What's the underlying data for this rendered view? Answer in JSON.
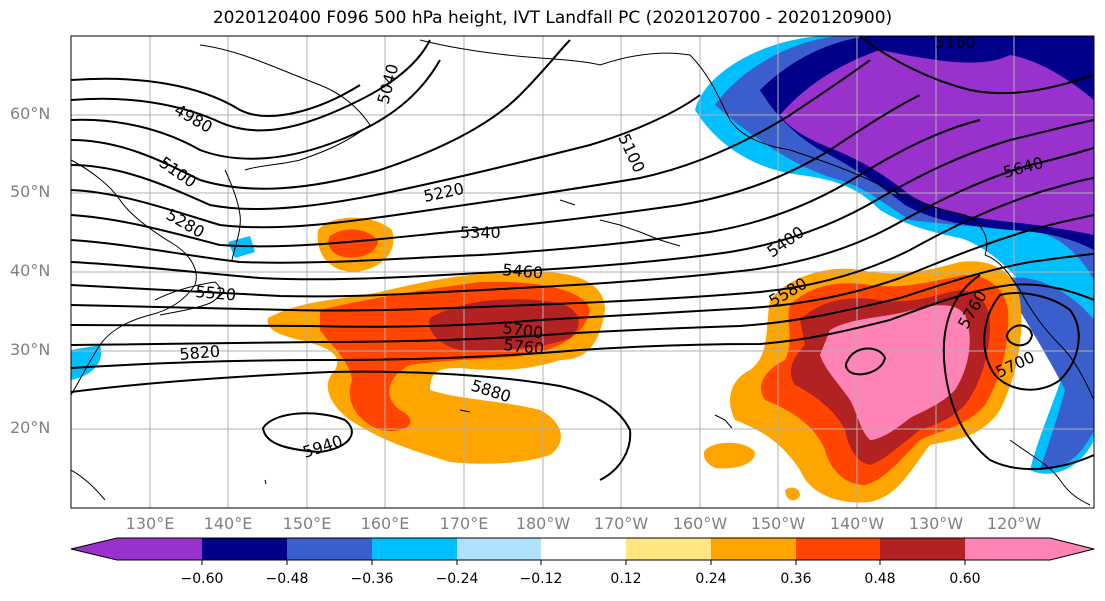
{
  "title": "2020120400 F096 500 hPa height, IVT Landfall PC (2020120700 - 2020120900)",
  "latitude_labels": [
    "60°N",
    "50°N",
    "40°N",
    "30°N",
    "20°N"
  ],
  "longitude_labels": [
    "130°E",
    "140°E",
    "150°E",
    "160°E",
    "170°E",
    "180°W",
    "170°W",
    "160°W",
    "150°W",
    "140°W",
    "130°W",
    "120°W"
  ],
  "height_contour_labels": [
    "4980",
    "5040",
    "5100",
    "5100",
    "5160",
    "5220",
    "5280",
    "5340",
    "5400",
    "5460",
    "5520",
    "5580",
    "5640",
    "5700",
    "5700",
    "5760",
    "5760",
    "5820",
    "5880",
    "5940"
  ],
  "colorbar": {
    "tick_labels": [
      "−0.60",
      "−0.48",
      "−0.36",
      "−0.24",
      "−0.12",
      "0.12",
      "0.24",
      "0.36",
      "0.48",
      "0.60"
    ],
    "colors": [
      "#9932cc",
      "#00008b",
      "#3a5fcd",
      "#00bfff",
      "#b0e2ff",
      "#ffffff",
      "#ffe680",
      "#ffa500",
      "#ff4500",
      "#b22222",
      "#ff83b4"
    ]
  }
}
